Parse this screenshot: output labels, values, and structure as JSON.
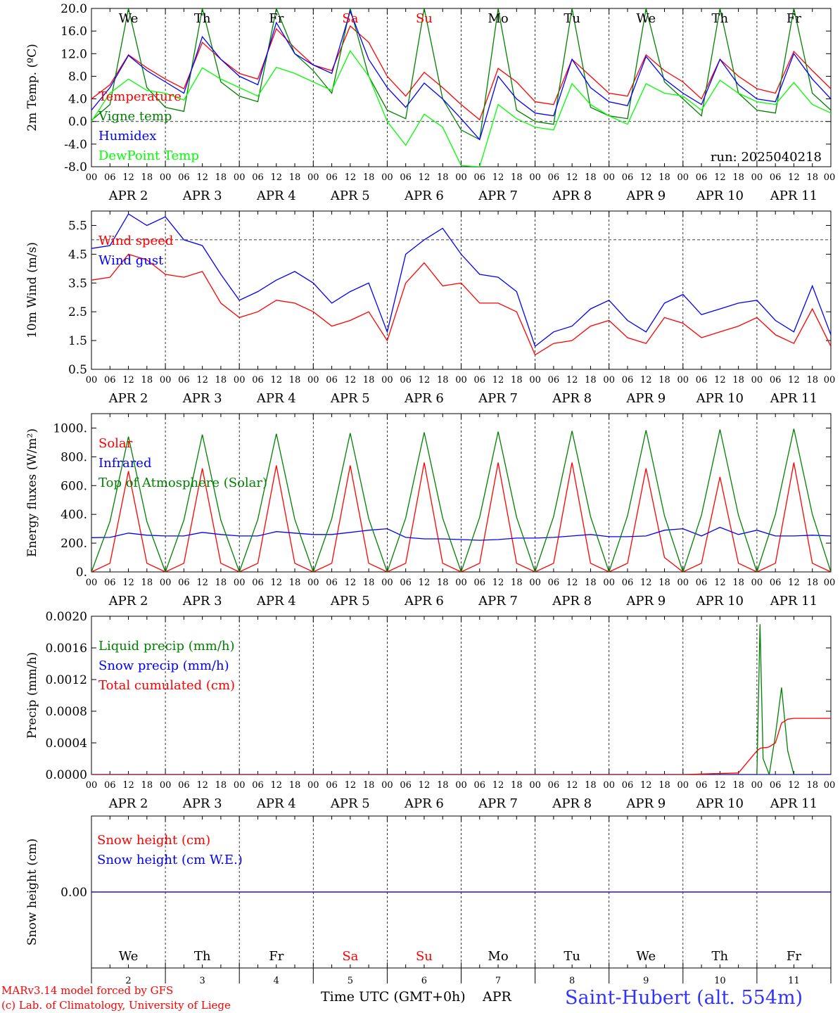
{
  "chart_data": {
    "type": "line",
    "run_label": "run: 2025040218",
    "days": {
      "dates": [
        "APR  2",
        "APR  3",
        "APR  4",
        "APR  5",
        "APR  6",
        "APR  7",
        "APR  8",
        "APR  9",
        "APR 10",
        "APR 11"
      ],
      "weekdays": [
        "We",
        "Th",
        "Fr",
        "Sa",
        "Su",
        "Mo",
        "Tu",
        "We",
        "Th",
        "Fr"
      ],
      "weekday_colors": [
        "#000000",
        "#000000",
        "#000000",
        "#ff0000",
        "#ff0000",
        "#000000",
        "#000000",
        "#000000",
        "#000000",
        "#000000"
      ],
      "day_numbers": [
        "2",
        "3",
        "4",
        "5",
        "6",
        "7",
        "8",
        "9",
        "10",
        "11"
      ],
      "hour_ticks": [
        "00",
        "06",
        "12",
        "18"
      ],
      "hour_end": "00"
    },
    "panels": [
      {
        "id": "temperature",
        "ylabel": "2m Temp. (ºC)",
        "ylim": [
          -8,
          20
        ],
        "yticks": [
          "20.0",
          "16.0",
          "12.0",
          "8.0",
          "4.0",
          "0.0",
          "-4.0",
          "-8.0"
        ],
        "dashed_ref": 0,
        "x_hours": [
          0,
          6,
          12,
          18,
          24,
          30,
          36,
          42,
          48,
          54,
          60,
          66,
          72,
          78,
          84,
          90,
          96,
          102,
          108,
          114,
          120,
          126,
          132,
          138,
          144,
          150,
          156,
          162,
          168,
          174,
          180,
          186,
          192,
          198,
          204,
          210,
          216,
          222,
          228,
          234,
          240
        ],
        "series": [
          {
            "name": "Temperature",
            "color": "#ff0000",
            "values": [
              4,
              6.5,
              11.8,
              9.5,
              7.5,
              5.8,
              14,
              11,
              8.5,
              7.5,
              16.4,
              13,
              10,
              9,
              16.9,
              14,
              8,
              4.5,
              8.7,
              6,
              3,
              0.3,
              9.4,
              7,
              3.5,
              3,
              11,
              8,
              5,
              4.5,
              11.8,
              9,
              7,
              4,
              11,
              8,
              5.8,
              5,
              12.4,
              9,
              5.8
            ]
          },
          {
            "name": "Vigne temp",
            "color": "#008000",
            "values": [
              0.2,
              3,
              20,
              6,
              2.5,
              1.8,
              20,
              7,
              4.5,
              3.5,
              20,
              12,
              9,
              5,
              20,
              8,
              2,
              0.5,
              20,
              4,
              -1.5,
              -3.2,
              20,
              2,
              0,
              -0.5,
              20,
              2.5,
              1,
              0.5,
              20,
              7,
              4,
              1,
              20,
              5,
              2,
              1.5,
              20,
              5,
              2
            ]
          },
          {
            "name": "Humidex",
            "color": "#0000ff",
            "values": [
              2,
              6,
              11.7,
              9,
              7,
              5,
              15,
              11,
              8,
              6.5,
              17.5,
              12,
              10,
              8.5,
              19.5,
              11,
              6,
              2.5,
              6.8,
              4,
              0.5,
              -3.2,
              8,
              4,
              1.5,
              1,
              11,
              6,
              3.5,
              2.8,
              11.5,
              7.5,
              5,
              3,
              11,
              6.5,
              4,
              3.5,
              12,
              7.5,
              4
            ]
          },
          {
            "name": "DewPoint Temp",
            "color": "#00ff00",
            "values": [
              0,
              5,
              7.5,
              5.5,
              5,
              3.8,
              9.5,
              7.5,
              6,
              4.5,
              9.6,
              8.5,
              7,
              5.5,
              12.5,
              8,
              0,
              -4.2,
              1.3,
              -1,
              -7.8,
              -8,
              3,
              0.5,
              -1,
              -1.5,
              6.7,
              3,
              1,
              -0.5,
              6.7,
              5,
              4.5,
              2,
              7.3,
              5,
              3.5,
              3,
              6.9,
              3,
              1.5
            ]
          }
        ]
      },
      {
        "id": "wind",
        "ylabel": "10m Wind (m/s)",
        "ylim": [
          0.5,
          6
        ],
        "yticks": [
          "5.5",
          "4.5",
          "3.5",
          "2.5",
          "1.5",
          "0.5"
        ],
        "dashed_ref": 5,
        "x_hours": [
          0,
          6,
          12,
          18,
          24,
          30,
          36,
          42,
          48,
          54,
          60,
          66,
          72,
          78,
          84,
          90,
          96,
          102,
          108,
          114,
          120,
          126,
          132,
          138,
          144,
          150,
          156,
          162,
          168,
          174,
          180,
          186,
          192,
          198,
          204,
          210,
          216,
          222,
          228,
          234,
          240
        ],
        "series": [
          {
            "name": "Wind speed",
            "color": "#ff0000",
            "values": [
              3.6,
              3.7,
              4.5,
              4.3,
              3.8,
              3.7,
              3.9,
              2.8,
              2.3,
              2.5,
              2.9,
              2.8,
              2.5,
              2.0,
              2.2,
              2.5,
              1.5,
              3.5,
              4.2,
              3.4,
              3.5,
              2.8,
              2.8,
              2.5,
              1.0,
              1.4,
              1.5,
              2.0,
              2.2,
              1.6,
              1.4,
              2.3,
              2.1,
              1.6,
              1.8,
              2.0,
              2.3,
              1.7,
              1.4,
              2.6,
              1.3
            ]
          },
          {
            "name": "Wind gust",
            "color": "#0000ff",
            "values": [
              4.7,
              4.8,
              5.9,
              5.5,
              5.8,
              5.0,
              4.8,
              3.8,
              2.9,
              3.2,
              3.6,
              3.9,
              3.5,
              2.8,
              3.2,
              3.5,
              1.8,
              4.5,
              5.0,
              5.4,
              4.5,
              3.8,
              3.7,
              3.2,
              1.3,
              1.8,
              2.0,
              2.6,
              2.9,
              2.2,
              1.8,
              2.8,
              3.1,
              2.4,
              2.6,
              2.8,
              2.9,
              2.2,
              1.8,
              3.4,
              1.7
            ]
          }
        ]
      },
      {
        "id": "energy",
        "ylabel": "Energy fluxes (W/m²)",
        "ylim": [
          0,
          1100
        ],
        "yticks": [
          "1000.",
          "800.",
          "600.",
          "400.",
          "200.",
          "0."
        ],
        "dashed_ref": null,
        "x_hours": [
          0,
          6,
          12,
          18,
          24,
          30,
          36,
          42,
          48,
          54,
          60,
          66,
          72,
          78,
          84,
          90,
          96,
          102,
          108,
          114,
          120,
          126,
          132,
          138,
          144,
          150,
          156,
          162,
          168,
          174,
          180,
          186,
          192,
          198,
          204,
          210,
          216,
          222,
          228,
          234,
          240
        ],
        "series": [
          {
            "name": "Solar",
            "color": "#ff0000",
            "values": [
              0,
              60,
              700,
              60,
              0,
              60,
              720,
              60,
              0,
              60,
              740,
              60,
              0,
              60,
              740,
              60,
              0,
              60,
              760,
              60,
              0,
              60,
              760,
              60,
              0,
              60,
              760,
              60,
              0,
              60,
              720,
              100,
              0,
              60,
              660,
              60,
              0,
              60,
              760,
              60,
              0
            ]
          },
          {
            "name": "Infrared",
            "color": "#0000ff",
            "values": [
              238,
              240,
              270,
              255,
              250,
              250,
              275,
              260,
              250,
              250,
              280,
              270,
              260,
              260,
              275,
              290,
              300,
              240,
              230,
              230,
              225,
              220,
              225,
              235,
              235,
              240,
              250,
              260,
              245,
              245,
              250,
              290,
              300,
              250,
              310,
              260,
              290,
              250,
              250,
              255,
              250
            ]
          },
          {
            "name": "Top of Atmosphere (Solar)",
            "color": "#008000",
            "values": [
              0,
              350,
              940,
              350,
              0,
              360,
              955,
              360,
              0,
              365,
              960,
              365,
              0,
              370,
              965,
              370,
              0,
              375,
              970,
              375,
              0,
              380,
              975,
              380,
              0,
              385,
              980,
              385,
              0,
              390,
              985,
              390,
              0,
              395,
              990,
              395,
              0,
              400,
              995,
              400,
              0
            ]
          }
        ]
      },
      {
        "id": "precip",
        "ylabel": "Precip (mm/h)",
        "ylim": [
          0,
          0.002
        ],
        "yticks": [
          "0.0020",
          "0.0016",
          "0.0012",
          "0.0008",
          "0.0004",
          "0.0000"
        ],
        "dashed_ref": null,
        "x_hours": [
          0,
          24,
          48,
          72,
          96,
          120,
          144,
          168,
          192,
          210,
          216,
          217,
          218,
          219,
          220,
          222,
          224,
          226,
          228,
          230,
          232,
          234,
          240
        ],
        "series": [
          {
            "name": "Liquid precip (mm/h)",
            "color": "#008000",
            "values": [
              0,
              0,
              0,
              0,
              0,
              0,
              0,
              0,
              0,
              0,
              0,
              0.0019,
              0.0002,
              0.0001,
              0,
              0.0005,
              0.0011,
              0.0003,
              0,
              0,
              0,
              0,
              0
            ]
          },
          {
            "name": "Snow precip (mm/h)",
            "color": "#0000ff",
            "values": [
              0,
              0,
              0,
              0,
              0,
              0,
              0,
              0,
              0,
              0,
              0,
              0,
              0,
              0,
              0,
              0,
              0,
              0,
              0,
              0,
              0,
              0,
              0
            ]
          },
          {
            "name": "Total cumulated (cm)",
            "color": "#ff0000",
            "values": [
              0,
              0,
              0,
              0,
              0,
              0,
              0,
              0,
              0,
              2e-05,
              0.0003,
              0.00033,
              0.00034,
              0.00034,
              0.00035,
              0.0004,
              0.00065,
              0.0007,
              0.00071,
              0.00071,
              0.00071,
              0.00071,
              0.00071
            ]
          }
        ]
      },
      {
        "id": "snow",
        "ylabel": "Snow height (cm)",
        "ylim": [
          -1,
          1
        ],
        "yticks": [
          "0.00"
        ],
        "dashed_ref": null,
        "x_hours": [
          0,
          240
        ],
        "series": [
          {
            "name": "Snow height (cm)",
            "color": "#ff0000",
            "values": [
              0,
              0
            ]
          },
          {
            "name": "Snow height (cm W.E.)",
            "color": "#0000ff",
            "values": [
              0,
              0
            ]
          }
        ]
      }
    ]
  },
  "footer": {
    "model_line": "MARv3.14 model forced by GFS",
    "copyright_line": "(c) Lab. of Climatology, University of Liege",
    "time_label": "Time UTC (GMT+0h)",
    "month_label": "APR",
    "station": "Saint-Hubert (alt. 554m)"
  },
  "colors": {
    "red": "#ff0000",
    "green": "#008000",
    "blue": "#0000ff",
    "light_green": "#00ff00",
    "footer_blue": "#3333ff"
  }
}
